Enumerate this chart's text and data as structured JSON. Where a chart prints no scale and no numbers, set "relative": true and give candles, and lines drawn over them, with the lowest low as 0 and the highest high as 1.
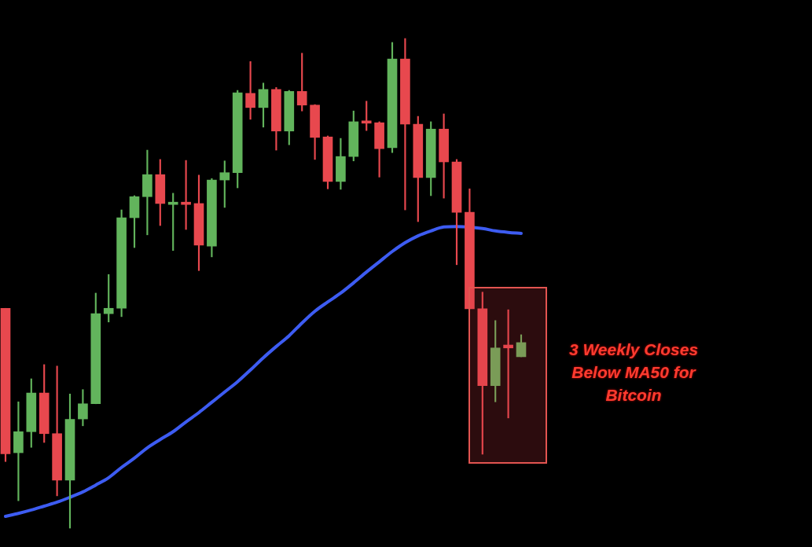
{
  "chart_data": {
    "type": "candlestick",
    "relative": true,
    "tick_labels": false,
    "categories": [
      null,
      null,
      null,
      null,
      null,
      null,
      null,
      null,
      null,
      null,
      null,
      null,
      null,
      null,
      null,
      null,
      null,
      null,
      null,
      null,
      null,
      null,
      null,
      null,
      null,
      null,
      null,
      null,
      null,
      null,
      null,
      null,
      null,
      null,
      null,
      null,
      null,
      null,
      null,
      null,
      null
    ],
    "ohlc": [
      [
        0.449,
        0.449,
        0.136,
        0.152
      ],
      [
        0.154,
        0.258,
        0.056,
        0.197
      ],
      [
        0.197,
        0.305,
        0.165,
        0.276
      ],
      [
        0.276,
        0.334,
        0.175,
        0.193
      ],
      [
        0.193,
        0.331,
        0.066,
        0.098
      ],
      [
        0.098,
        0.274,
        0,
        0.222
      ],
      [
        0.223,
        0.283,
        0.209,
        0.254
      ],
      [
        0.254,
        0.48,
        0.254,
        0.438
      ],
      [
        0.438,
        0.518,
        0.421,
        0.449
      ],
      [
        0.449,
        0.65,
        0.432,
        0.634
      ],
      [
        0.634,
        0.679,
        0.573,
        0.677
      ],
      [
        0.677,
        0.772,
        0.599,
        0.722
      ],
      [
        0.722,
        0.753,
        0.618,
        0.663
      ],
      [
        0.661,
        0.684,
        0.567,
        0.663
      ],
      [
        0.663,
        0.751,
        0.61,
        0.661
      ],
      [
        0.663,
        0.721,
        0.526,
        0.578
      ],
      [
        0.576,
        0.714,
        0.554,
        0.711
      ],
      [
        0.711,
        0.75,
        0.655,
        0.726
      ],
      [
        0.726,
        0.894,
        0.695,
        0.889
      ],
      [
        0.888,
        0.953,
        0.835,
        0.859
      ],
      [
        0.859,
        0.909,
        0.819,
        0.896
      ],
      [
        0.896,
        0.9,
        0.772,
        0.811
      ],
      [
        0.811,
        0.894,
        0.783,
        0.892
      ],
      [
        0.892,
        0.97,
        0.852,
        0.864
      ],
      [
        0.864,
        0.865,
        0.753,
        0.798
      ],
      [
        0.799,
        0.801,
        0.693,
        0.708
      ],
      [
        0.708,
        0.796,
        0.692,
        0.759
      ],
      [
        0.759,
        0.852,
        0.75,
        0.83
      ],
      [
        0.83,
        0.872,
        0.812,
        0.827
      ],
      [
        0.828,
        0.83,
        0.717,
        0.775
      ],
      [
        0.777,
        0.992,
        0.767,
        0.958
      ],
      [
        0.958,
        1,
        0.65,
        0.825
      ],
      [
        0.825,
        0.841,
        0.626,
        0.716
      ],
      [
        0.716,
        0.83,
        0.679,
        0.815
      ],
      [
        0.815,
        0.846,
        0.674,
        0.748
      ],
      [
        0.748,
        0.753,
        0.538,
        0.645
      ],
      [
        0.645,
        0.693,
        0.448,
        0.448
      ],
      [
        0.448,
        0.482,
        0.151,
        0.291
      ],
      [
        0.291,
        0.424,
        0.258,
        0.368
      ],
      [
        0.374,
        0.446,
        0.225,
        0.368
      ],
      [
        0.35,
        0.395,
        0.35,
        0.379
      ]
    ],
    "colors": [
      "#e8484e",
      "#62b45c",
      "#62b45c",
      "#e8484e",
      "#e8484e",
      "#62b45c",
      "#62b45c",
      "#62b45c",
      "#62b45c",
      "#62b45c",
      "#62b45c",
      "#62b45c",
      "#e8484e",
      "#62b45c",
      "#e8484e",
      "#e8484e",
      "#62b45c",
      "#62b45c",
      "#62b45c",
      "#e8484e",
      "#62b45c",
      "#e8484e",
      "#62b45c",
      "#e8484e",
      "#e8484e",
      "#e8484e",
      "#62b45c",
      "#62b45c",
      "#e8484e",
      "#e8484e",
      "#62b45c",
      "#e8484e",
      "#e8484e",
      "#62b45c",
      "#e8484e",
      "#e8484e",
      "#e8484e",
      "#e8484e",
      "#62b45c",
      "#e8484e",
      "#62b45c"
    ],
    "series": [
      {
        "type": "line",
        "color": "#3d5cf2",
        "values": [
          0.024,
          0.03,
          0.037,
          0.045,
          0.053,
          0.063,
          0.074,
          0.088,
          0.103,
          0.124,
          0.143,
          0.164,
          0.181,
          0.197,
          0.217,
          0.236,
          0.257,
          0.278,
          0.299,
          0.323,
          0.348,
          0.371,
          0.393,
          0.419,
          0.443,
          0.462,
          0.48,
          0.501,
          0.523,
          0.544,
          0.565,
          0.583,
          0.597,
          0.607,
          0.615,
          0.616,
          null,
          0.612,
          0.607,
          0.604,
          0.602
        ]
      }
    ],
    "annotations": [
      "3 Weekly Closes Below MA50 for Bitcoin"
    ]
  }
}
